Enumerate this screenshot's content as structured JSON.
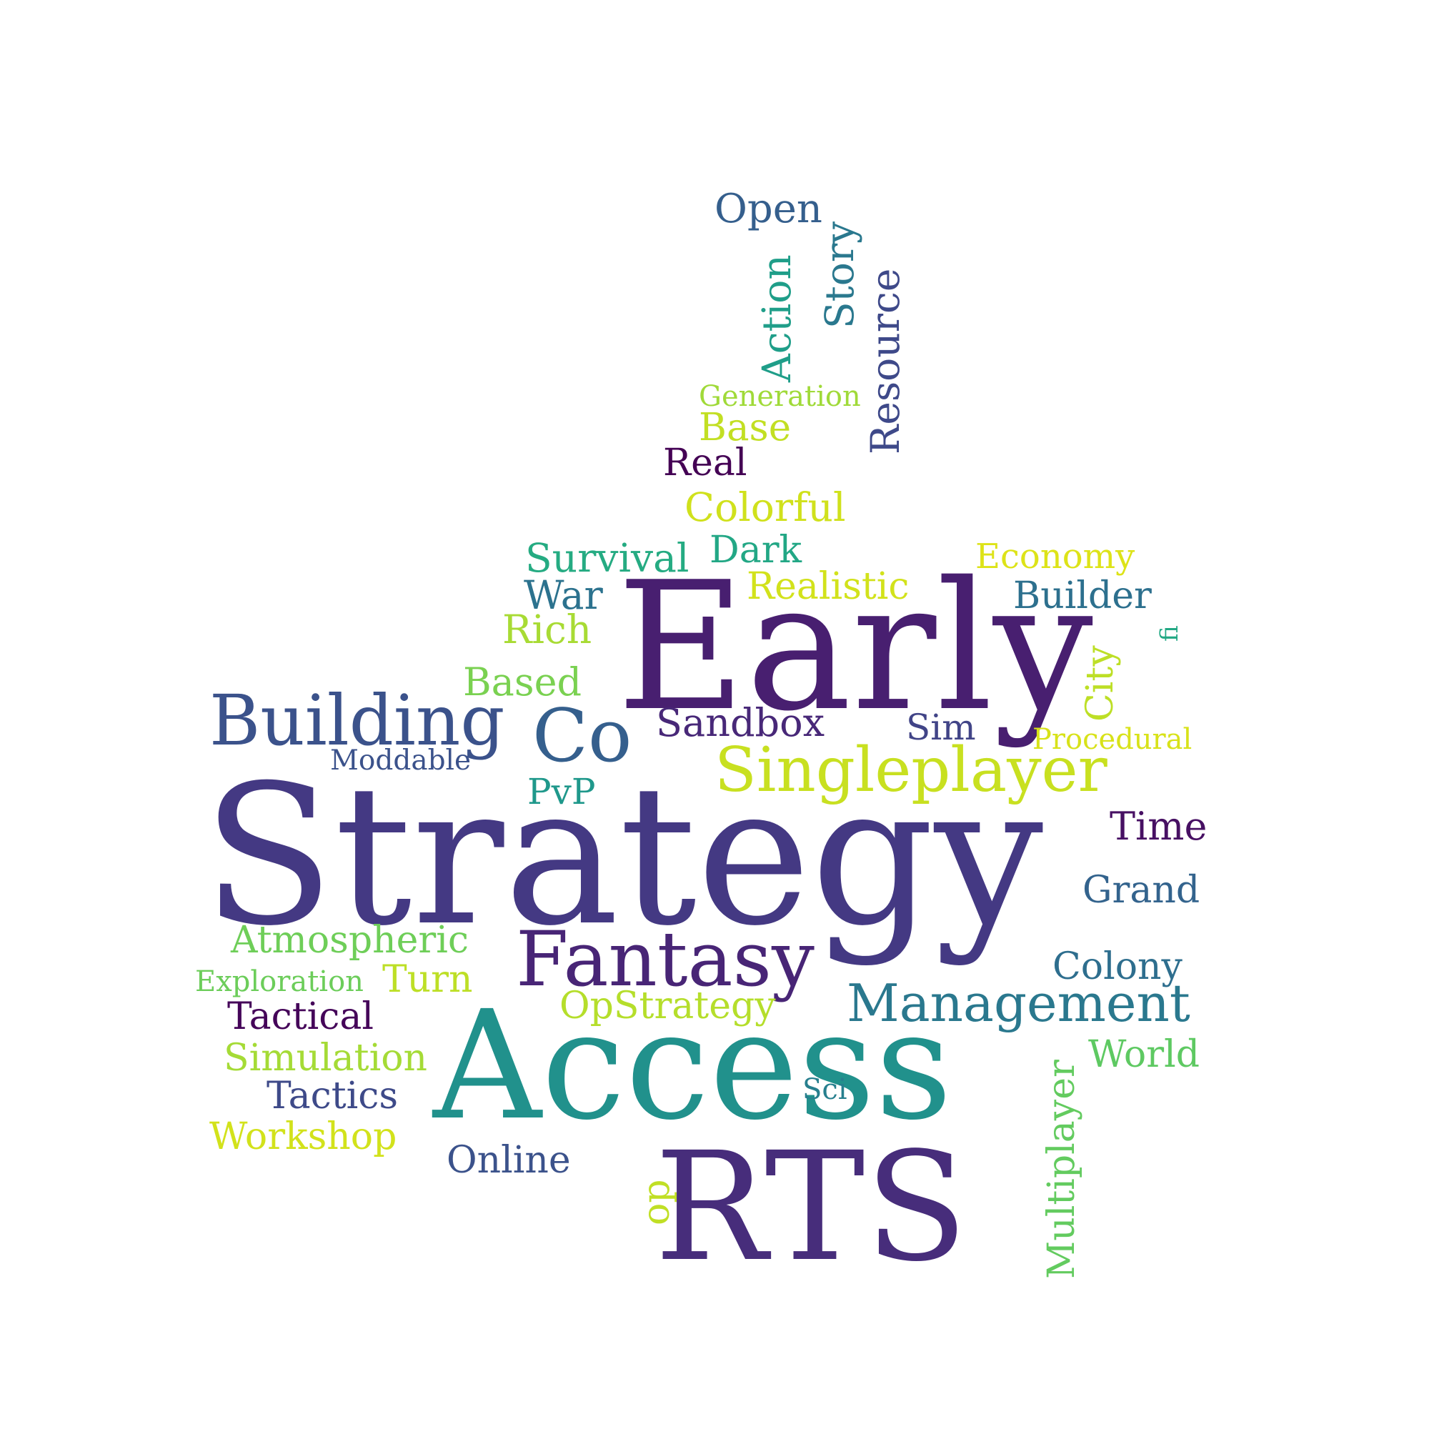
{
  "words": [
    {
      "text": "Strategy",
      "color": "#443983"
    },
    {
      "text": "Early",
      "color": "#481f70"
    },
    {
      "text": "Access",
      "color": "#21918c"
    },
    {
      "text": "RTS",
      "color": "#472d7b"
    },
    {
      "text": "Fantasy",
      "color": "#482576"
    },
    {
      "text": "Building",
      "color": "#3b528b"
    },
    {
      "text": "Co",
      "color": "#355f8d"
    },
    {
      "text": "Singleplayer",
      "color": "#c8e020"
    },
    {
      "text": "Management",
      "color": "#2a788e"
    },
    {
      "text": "Open",
      "color": "#355f8d"
    },
    {
      "text": "Action",
      "color": "#1f9e89"
    },
    {
      "text": "Story",
      "color": "#2a788e"
    },
    {
      "text": "Resource",
      "color": "#3e4989"
    },
    {
      "text": "Generation",
      "color": "#a0da39"
    },
    {
      "text": "Base",
      "color": "#c2df23"
    },
    {
      "text": "Real",
      "color": "#440154"
    },
    {
      "text": "Colorful",
      "color": "#d0e11c"
    },
    {
      "text": "Survival",
      "color": "#25ab82"
    },
    {
      "text": "Dark",
      "color": "#22a785"
    },
    {
      "text": "Economy",
      "color": "#dde318"
    },
    {
      "text": "War",
      "color": "#2c728e"
    },
    {
      "text": "Realistic",
      "color": "#d2e21b"
    },
    {
      "text": "Builder",
      "color": "#2d708e"
    },
    {
      "text": "Rich",
      "color": "#a8db34"
    },
    {
      "text": "fi",
      "color": "#22a884"
    },
    {
      "text": "City",
      "color": "#bddf26"
    },
    {
      "text": "Based",
      "color": "#7ad151"
    },
    {
      "text": "Sandbox",
      "color": "#482878"
    },
    {
      "text": "Sim",
      "color": "#414487"
    },
    {
      "text": "Procedural",
      "color": "#d8e219"
    },
    {
      "text": "Moddable",
      "color": "#3b528b"
    },
    {
      "text": "PvP",
      "color": "#1f988b"
    },
    {
      "text": "Time",
      "color": "#471063"
    },
    {
      "text": "Grand",
      "color": "#33638d"
    },
    {
      "text": "Atmospheric",
      "color": "#6ece58"
    },
    {
      "text": "Colony",
      "color": "#2e6e8e"
    },
    {
      "text": "Exploration",
      "color": "#6ccd5a"
    },
    {
      "text": "Turn",
      "color": "#bddf26"
    },
    {
      "text": "OpStrategy",
      "color": "#b5de2b"
    },
    {
      "text": "Tactical",
      "color": "#450559"
    },
    {
      "text": "Simulation",
      "color": "#a5db36"
    },
    {
      "text": "World",
      "color": "#5ec962"
    },
    {
      "text": "Multiplayer",
      "color": "#63cb5f"
    },
    {
      "text": "Tactics",
      "color": "#3e4a89"
    },
    {
      "text": "Sci",
      "color": "#277f8e"
    },
    {
      "text": "Workshop",
      "color": "#d2e21b"
    },
    {
      "text": "Online",
      "color": "#3b528b"
    },
    {
      "text": "op",
      "color": "#c0df25"
    }
  ]
}
